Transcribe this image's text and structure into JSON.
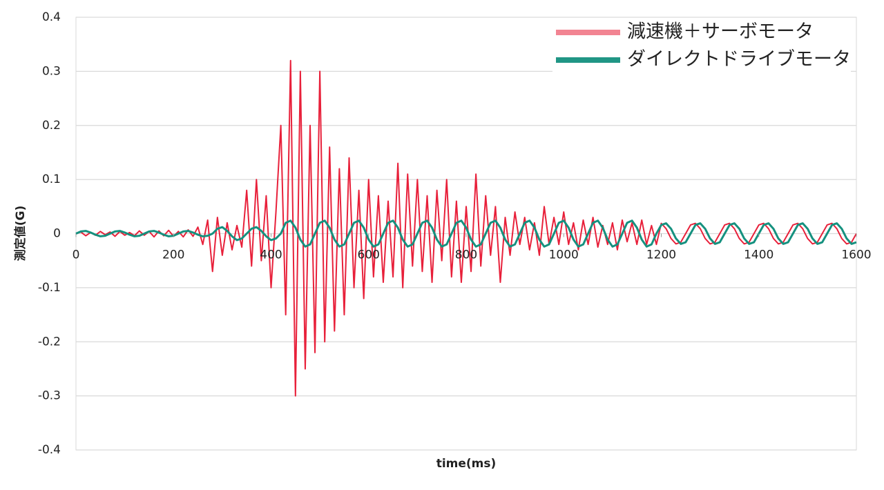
{
  "chart_data": {
    "type": "line",
    "y_label": "測定値(G)",
    "x_label": "time(ms)",
    "xlim": [
      0,
      1600
    ],
    "xticks": [
      0,
      200,
      400,
      600,
      800,
      1000,
      1200,
      1400,
      1600
    ],
    "ylim": [
      -0.4,
      0.4
    ],
    "yticks": [
      0.4,
      0.3,
      0.2,
      0.1,
      0,
      -0.1,
      -0.2,
      -0.3,
      -0.4
    ],
    "grid": true,
    "legend": "top-right",
    "x": [
      0,
      10,
      20,
      30,
      40,
      50,
      60,
      70,
      80,
      90,
      100,
      110,
      120,
      130,
      140,
      150,
      160,
      170,
      180,
      190,
      200,
      210,
      220,
      230,
      240,
      250,
      260,
      270,
      280,
      290,
      300,
      310,
      320,
      330,
      340,
      350,
      360,
      370,
      380,
      390,
      400,
      410,
      420,
      430,
      440,
      450,
      460,
      470,
      480,
      490,
      500,
      510,
      520,
      530,
      540,
      550,
      560,
      570,
      580,
      590,
      600,
      610,
      620,
      630,
      640,
      650,
      660,
      670,
      680,
      690,
      700,
      710,
      720,
      730,
      740,
      750,
      760,
      770,
      780,
      790,
      800,
      810,
      820,
      830,
      840,
      850,
      860,
      870,
      880,
      890,
      900,
      910,
      920,
      930,
      940,
      950,
      960,
      970,
      980,
      990,
      1000,
      1010,
      1020,
      1030,
      1040,
      1050,
      1060,
      1070,
      1080,
      1090,
      1100,
      1110,
      1120,
      1130,
      1140,
      1150,
      1160,
      1170,
      1180,
      1190,
      1200,
      1210,
      1220,
      1230,
      1240,
      1250,
      1260,
      1270,
      1280,
      1290,
      1300,
      1310,
      1320,
      1330,
      1340,
      1350,
      1360,
      1370,
      1380,
      1390,
      1400,
      1410,
      1420,
      1430,
      1440,
      1450,
      1460,
      1470,
      1480,
      1490,
      1500,
      1510,
      1520,
      1530,
      1540,
      1550,
      1560,
      1570,
      1580,
      1590,
      1600
    ],
    "series": [
      {
        "name": "減速機＋サーボモータ",
        "color": "#e8203a",
        "values": [
          0,
          0.003,
          -0.004,
          0.002,
          -0.003,
          0.004,
          -0.002,
          0.003,
          -0.005,
          0.004,
          -0.003,
          0.002,
          -0.004,
          0.005,
          -0.003,
          0.004,
          -0.006,
          0.005,
          -0.004,
          0.006,
          -0.005,
          0.004,
          -0.006,
          0.007,
          -0.005,
          0.012,
          -0.02,
          0.025,
          -0.07,
          0.03,
          -0.04,
          0.02,
          -0.03,
          0.015,
          -0.025,
          0.08,
          -0.06,
          0.1,
          -0.05,
          0.07,
          -0.1,
          0.04,
          0.2,
          -0.15,
          0.32,
          -0.3,
          0.3,
          -0.25,
          0.2,
          -0.22,
          0.3,
          -0.2,
          0.16,
          -0.18,
          0.12,
          -0.15,
          0.14,
          -0.1,
          0.08,
          -0.12,
          0.1,
          -0.08,
          0.07,
          -0.09,
          0.06,
          -0.08,
          0.13,
          -0.1,
          0.11,
          -0.06,
          0.1,
          -0.07,
          0.07,
          -0.09,
          0.08,
          -0.05,
          0.1,
          -0.08,
          0.06,
          -0.09,
          0.05,
          -0.07,
          0.11,
          -0.06,
          0.07,
          -0.04,
          0.05,
          -0.09,
          0.03,
          -0.04,
          0.04,
          -0.02,
          0.03,
          -0.03,
          0.02,
          -0.04,
          0.05,
          -0.02,
          0.03,
          -0.02,
          0.04,
          -0.02,
          0.02,
          -0.03,
          0.025,
          -0.02,
          0.03,
          -0.025,
          0.015,
          -0.02,
          0.02,
          -0.03,
          0.025,
          -0.015,
          0.02,
          -0.02,
          0.025,
          -0.02,
          0.015,
          -0.02,
          0.019,
          0.009,
          -0.009,
          -0.019,
          -0.016,
          0,
          0.016,
          0.019,
          0.009,
          -0.009,
          -0.019,
          -0.016,
          0,
          0.016,
          0.019,
          0.009,
          -0.009,
          -0.019,
          -0.016,
          0,
          0.016,
          0.019,
          0.009,
          -0.009,
          -0.019,
          -0.016,
          0,
          0.016,
          0.019,
          0.009,
          -0.009,
          -0.019,
          -0.016,
          0,
          0.016,
          0.019,
          0.009,
          -0.009,
          -0.019,
          -0.016,
          0
        ]
      },
      {
        "name": "ダイレクトドライブモータ",
        "color": "#15917f",
        "values": [
          0,
          0.004,
          0.005,
          0.002,
          -0.002,
          -0.005,
          -0.004,
          0,
          0.004,
          0.005,
          0.002,
          -0.002,
          -0.005,
          -0.004,
          0,
          0.004,
          0.005,
          0.002,
          -0.002,
          -0.005,
          -0.004,
          0,
          0.004,
          0.005,
          0.002,
          -0.002,
          -0.005,
          -0.004,
          0,
          0.009,
          0.012,
          0.005,
          -0.005,
          -0.012,
          -0.009,
          0,
          0.009,
          0.012,
          0.005,
          -0.005,
          -0.012,
          -0.009,
          0,
          0.02,
          0.024,
          0.011,
          -0.011,
          -0.024,
          -0.02,
          0,
          0.02,
          0.024,
          0.011,
          -0.011,
          -0.024,
          -0.02,
          0,
          0.02,
          0.024,
          0.011,
          -0.011,
          -0.024,
          -0.02,
          0,
          0.02,
          0.024,
          0.011,
          -0.011,
          -0.024,
          -0.02,
          0,
          0.02,
          0.024,
          0.011,
          -0.011,
          -0.024,
          -0.02,
          0,
          0.02,
          0.024,
          0.011,
          -0.011,
          -0.024,
          -0.02,
          0,
          0.02,
          0.024,
          0.011,
          -0.011,
          -0.024,
          -0.02,
          0,
          0.02,
          0.024,
          0.011,
          -0.011,
          -0.024,
          -0.02,
          0,
          0.02,
          0.024,
          0.011,
          -0.011,
          -0.024,
          -0.02,
          0,
          0.02,
          0.024,
          0.011,
          -0.011,
          -0.024,
          -0.02,
          0,
          0.02,
          0.024,
          0.011,
          -0.011,
          -0.024,
          -0.02,
          0,
          0.016,
          0.019,
          0.009,
          -0.009,
          -0.019,
          -0.016,
          0,
          0.016,
          0.019,
          0.009,
          -0.009,
          -0.019,
          -0.016,
          0,
          0.016,
          0.019,
          0.009,
          -0.009,
          -0.019,
          -0.016,
          0,
          0.016,
          0.019,
          0.009,
          -0.009,
          -0.019,
          -0.016,
          0,
          0.016,
          0.019,
          0.009,
          -0.009,
          -0.019,
          -0.016,
          0,
          0.016,
          0.019,
          0.009,
          -0.009,
          -0.019,
          -0.016
        ]
      }
    ]
  }
}
